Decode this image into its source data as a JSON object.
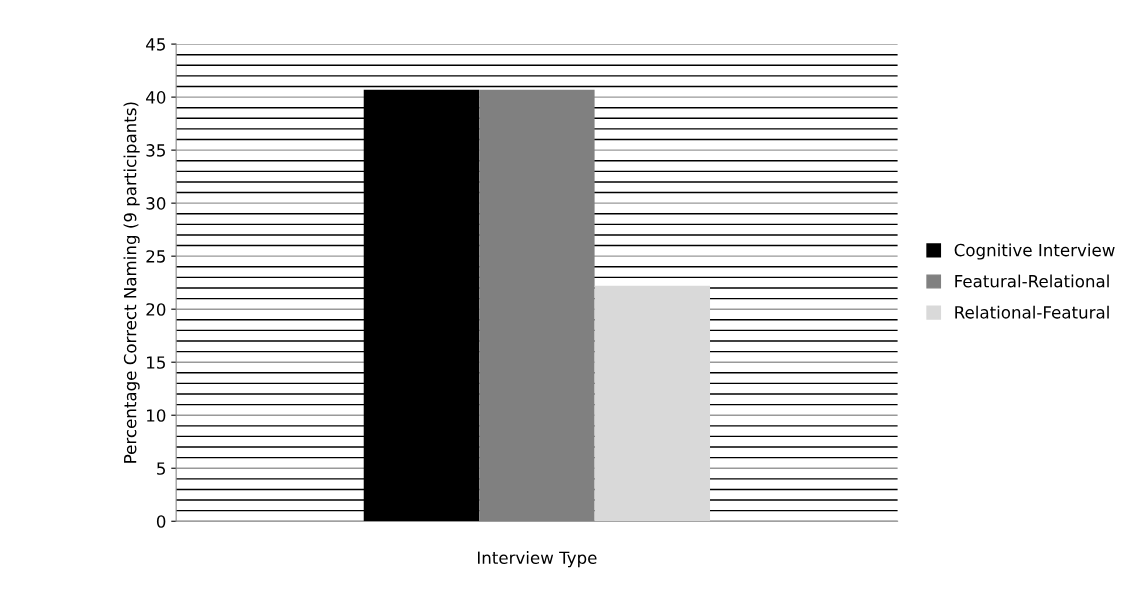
{
  "chart_data": {
    "type": "bar",
    "xlabel": "Interview Type",
    "ylabel": "Percentage Correct Naming (9 participants)",
    "categories": [
      null
    ],
    "series": [
      {
        "name": "Cognitive Interview",
        "color": "#000000",
        "values": [
          40.7
        ]
      },
      {
        "name": "Featural-Relational",
        "color": "#808080",
        "values": [
          40.7
        ]
      },
      {
        "name": "Relational-Featural",
        "color": "#d9d9d9",
        "values": [
          22.2
        ]
      }
    ],
    "ylim": [
      0,
      45
    ],
    "yticks": [
      0,
      {
        "value": 1,
        "label": null
      },
      {
        "value": 2,
        "label": null
      },
      {
        "value": 3,
        "label": null
      },
      {
        "value": 4,
        "label": null
      },
      5,
      {
        "value": 6,
        "label": null
      },
      {
        "value": 7,
        "label": null
      },
      {
        "value": 8,
        "label": null
      },
      {
        "value": 9,
        "label": null
      },
      10,
      {
        "value": 11,
        "label": null
      },
      {
        "value": 12,
        "label": null
      },
      {
        "value": 13,
        "label": null
      },
      {
        "value": 14,
        "label": null
      },
      15,
      {
        "value": 16,
        "label": null
      },
      {
        "value": 17,
        "label": null
      },
      {
        "value": 18,
        "label": null
      },
      {
        "value": 19,
        "label": null
      },
      20,
      {
        "value": 21,
        "label": null
      },
      {
        "value": 22,
        "label": null
      },
      {
        "value": 23,
        "label": null
      },
      {
        "value": 24,
        "label": null
      },
      25,
      {
        "value": 26,
        "label": null
      },
      {
        "value": 27,
        "label": null
      },
      {
        "value": 28,
        "label": null
      },
      {
        "value": 29,
        "label": null
      },
      30,
      {
        "value": 31,
        "label": null
      },
      {
        "value": 32,
        "label": null
      },
      {
        "value": 33,
        "label": null
      },
      {
        "value": 34,
        "label": null
      },
      35,
      {
        "value": 36,
        "label": null
      },
      {
        "value": 37,
        "label": null
      },
      {
        "value": 38,
        "label": null
      },
      {
        "value": 39,
        "label": null
      },
      40,
      {
        "value": 41,
        "label": null
      },
      {
        "value": 42,
        "label": null
      },
      {
        "value": 43,
        "label": null
      },
      {
        "value": 44,
        "label": null
      },
      45
    ],
    "grid": "y",
    "legend": "right"
  }
}
